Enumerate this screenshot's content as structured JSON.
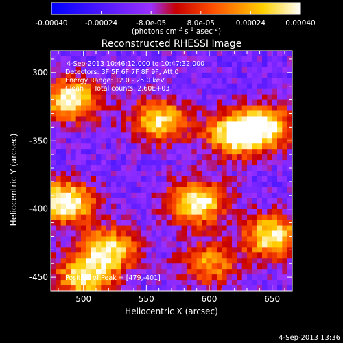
{
  "chart_data": {
    "type": "heatmap",
    "title": "Reconstructed RHESSI Image",
    "xlabel": "Heliocentric X (arcsec)",
    "ylabel": "Heliocentric Y (arcsec)",
    "xlim": [
      474,
      666
    ],
    "ylim": [
      -460,
      -284
    ],
    "x_ticks": [
      500,
      550,
      600,
      650
    ],
    "x_tick_labels": [
      "500",
      "550",
      "600",
      "650"
    ],
    "y_ticks": [
      -300,
      -350,
      -400,
      -450
    ],
    "y_tick_labels": [
      "-300",
      "-350",
      "-400",
      "-450"
    ],
    "colorbar": {
      "range": [
        -0.0004,
        0.0004
      ],
      "ticks": [
        -0.0004,
        -0.00024,
        -8e-05,
        8e-05,
        0.00024,
        0.0004
      ],
      "tick_labels": [
        "-0.00040",
        "-0.00024",
        "-8.0e-05",
        "8.0e-05",
        "0.00024",
        "0.00040"
      ],
      "units": "(photons cm-2 s-1 asec-2)",
      "colors": [
        "#0000ff",
        "#9b30ff",
        "#c80000",
        "#ff5000",
        "#ffd000",
        "#ffffff"
      ]
    },
    "annotations": [
      "4-Sep-2013 10:46:12.000 to 10:47:32.000",
      "Detectors: 3F 5F 6F 7F 8F 9F, Att 0",
      "Energy Range: 12.0 - 25.0 keV",
      "Clean     Total counts: 2.60E+03",
      "Position of Peak = [479,-401]"
    ],
    "peak": {
      "x": 479,
      "y": -401
    },
    "hotspots": [
      {
        "x": 620,
        "y": -345,
        "intensity": 0.9
      },
      {
        "x": 560,
        "y": -335,
        "intensity": 0.8
      },
      {
        "x": 590,
        "y": -395,
        "intensity": 0.95
      },
      {
        "x": 485,
        "y": -395,
        "intensity": 1.0
      },
      {
        "x": 520,
        "y": -430,
        "intensity": 0.85
      },
      {
        "x": 650,
        "y": -420,
        "intensity": 0.9
      },
      {
        "x": 490,
        "y": -320,
        "intensity": 0.9
      },
      {
        "x": 645,
        "y": -340,
        "intensity": 0.8
      },
      {
        "x": 500,
        "y": -450,
        "intensity": 0.8
      },
      {
        "x": 600,
        "y": -440,
        "intensity": 0.6
      }
    ]
  },
  "footer_timestamp": "4-Sep-2013 13:36"
}
